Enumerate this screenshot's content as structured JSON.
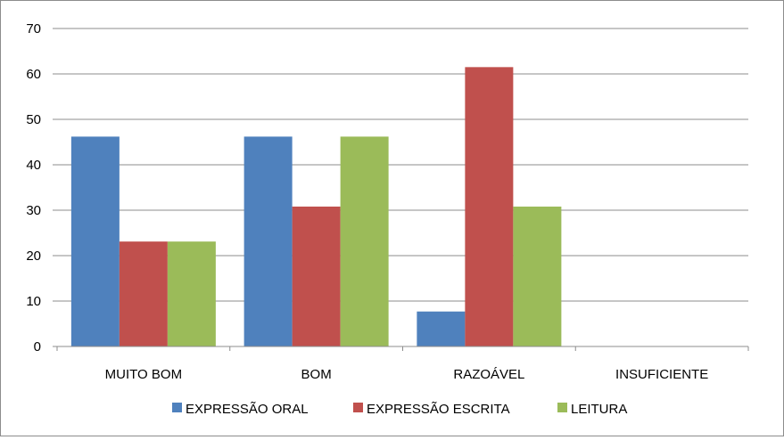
{
  "chart_data": {
    "type": "bar",
    "title": "",
    "xlabel": "",
    "ylabel": "",
    "categories": [
      "MUITO BOM",
      "BOM",
      "RAZOÁVEL",
      "INSUFICIENTE"
    ],
    "series": [
      {
        "name": "EXPRESSÃO ORAL",
        "color": "#4f81bd",
        "values": [
          46.2,
          46.2,
          7.7,
          0
        ]
      },
      {
        "name": "EXPRESSÃO ESCRITA",
        "color": "#c0504d",
        "values": [
          23.1,
          30.8,
          61.5,
          0
        ]
      },
      {
        "name": "LEITURA",
        "color": "#9bbb59",
        "values": [
          23.1,
          46.2,
          30.8,
          0
        ]
      }
    ],
    "ylim": [
      0,
      70
    ],
    "yticks": [
      0,
      10,
      20,
      30,
      40,
      50,
      60,
      70
    ],
    "grid": true,
    "legend_position": "bottom"
  }
}
